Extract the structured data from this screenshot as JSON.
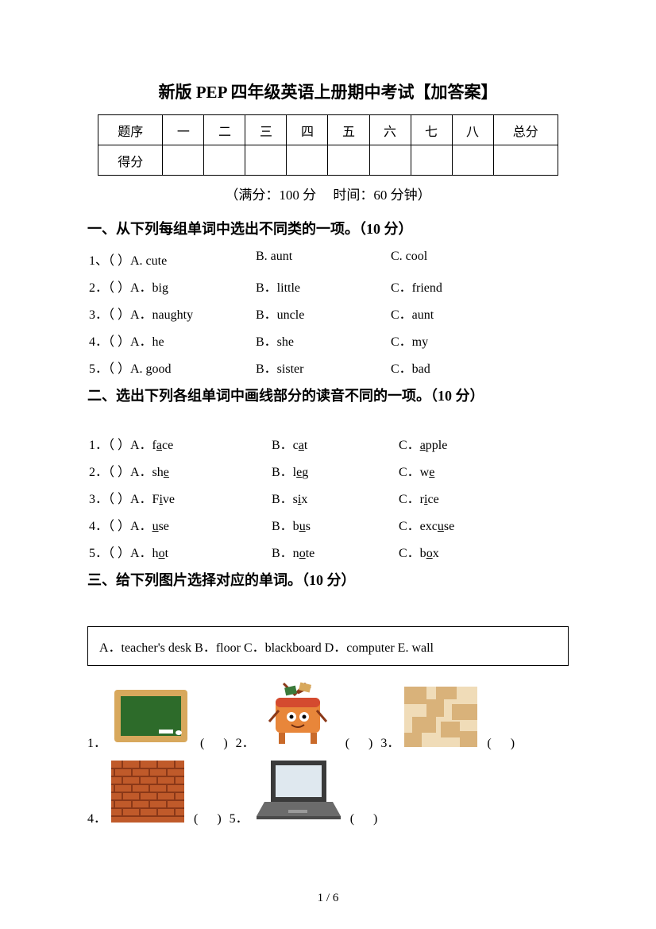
{
  "title": "新版 PEP 四年级英语上册期中考试【加答案】",
  "score_table": {
    "row1": [
      "题序",
      "一",
      "二",
      "三",
      "四",
      "五",
      "六",
      "七",
      "八",
      "总分"
    ],
    "row2_label": "得分"
  },
  "subtitle": "（满分：100 分　 时间：60 分钟）",
  "s1": {
    "heading": "一、从下列每组单词中选出不同类的一项。（10 分）",
    "items": [
      {
        "n": "1、（  ）A. cute",
        "b": "B. aunt",
        "c": "C. cool"
      },
      {
        "n": "2．（  ）A．big",
        "b": "B．little",
        "c": "C．friend"
      },
      {
        "n": "3．（  ）A．naughty",
        "b": "B．uncle",
        "c": "C．aunt"
      },
      {
        "n": "4．（  ）A．he",
        "b": "B．she",
        "c": "C．my"
      },
      {
        "n": "5．（  ）A. good",
        "b": "B．sister",
        "c": "C．bad"
      }
    ]
  },
  "s2": {
    "heading": "二、选出下列各组单词中画线部分的读音不同的一项。（10 分）",
    "items": [
      {
        "n": "1．（  ）A．f",
        "au": "a",
        "ae": "ce",
        "b": "B．c",
        "bu": "a",
        "be": "t",
        "c": "C．",
        "cu": "a",
        "ce": "pple"
      },
      {
        "n": "2．（  ）A．sh",
        "au": "e",
        "ae": "",
        "b": "B．l",
        "bu": "e",
        "be": "g",
        "c": "C．w",
        "cu": "e",
        "ce": ""
      },
      {
        "n": "3．（  ）A．F",
        "au": "i",
        "ae": "ve",
        "b": "B．s",
        "bu": "i",
        "be": "x",
        "c": "C．r",
        "cu": "i",
        "ce": "ce"
      },
      {
        "n": "4．（  ）A．",
        "au": "u",
        "ae": "se",
        "b": "B．b",
        "bu": "u",
        "be": "s",
        "c": "C．exc",
        "cu": "u",
        "ce": "se"
      },
      {
        "n": "5．（  ）A．h",
        "au": "o",
        "ae": "t",
        "b": "B．n",
        "bu": "o",
        "be": "te",
        "c": "C．b",
        "cu": "o",
        "ce": "x"
      }
    ]
  },
  "s3": {
    "heading": "三、给下列图片选择对应的单词。（10 分）",
    "options": "A．teacher's desk  B．floor  C．blackboard  D．computer  E. wall",
    "labels": {
      "n1": "1．",
      "n2": "2．",
      "n3": "3．",
      "n4": "4．",
      "n5": "5．"
    },
    "paren": "(      )"
  },
  "footer": "1 / 6",
  "colors": {
    "blackboard_frame": "#d8a85c",
    "blackboard_green": "#2d6b2a",
    "desk_orange": "#e8863a",
    "desk_red": "#d44a2f",
    "floor_tan": "#d9b27a",
    "floor_light": "#f0dcb8",
    "brick": "#c05a2a",
    "brick_dark": "#8a3818",
    "laptop_gray": "#6b6b6b",
    "laptop_screen": "#dfe8ef"
  }
}
